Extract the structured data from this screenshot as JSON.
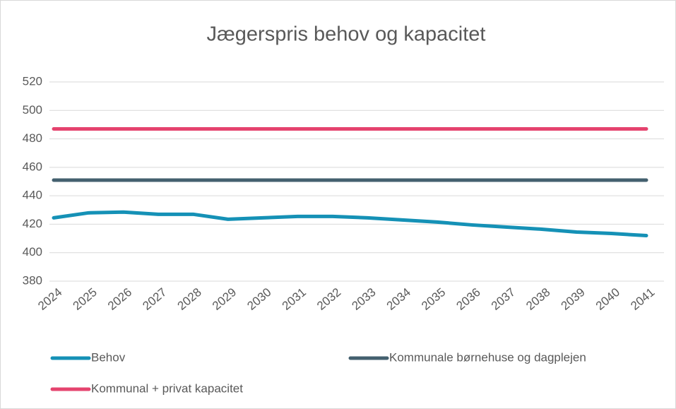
{
  "chart_data": {
    "type": "line",
    "title": "Jægerspris behov og kapacitet",
    "categories": [
      "2024",
      "2025",
      "2026",
      "2027",
      "2028",
      "2029",
      "2030",
      "2031",
      "2032",
      "2033",
      "2034",
      "2035",
      "2036",
      "2037",
      "2038",
      "2039",
      "2040",
      "2041"
    ],
    "series": [
      {
        "name": "Behov",
        "color": "#1591b6",
        "values": [
          424.5,
          428,
          428.5,
          427,
          427,
          423.5,
          424.5,
          425.5,
          425.5,
          424.5,
          423,
          421.5,
          419.5,
          418,
          416.5,
          414.5,
          413.5,
          412
        ]
      },
      {
        "name": "Kommunale børnehuse og dagplejen",
        "color": "#44606f",
        "values": [
          451,
          451,
          451,
          451,
          451,
          451,
          451,
          451,
          451,
          451,
          451,
          451,
          451,
          451,
          451,
          451,
          451,
          451
        ]
      },
      {
        "name": "Kommunal + privat kapacitet",
        "color": "#e5436e",
        "values": [
          487,
          487,
          487,
          487,
          487,
          487,
          487,
          487,
          487,
          487,
          487,
          487,
          487,
          487,
          487,
          487,
          487,
          487
        ]
      }
    ],
    "ylim": [
      380,
      520
    ],
    "yticks": [
      380,
      400,
      420,
      440,
      460,
      480,
      500,
      520
    ],
    "grid": true
  }
}
